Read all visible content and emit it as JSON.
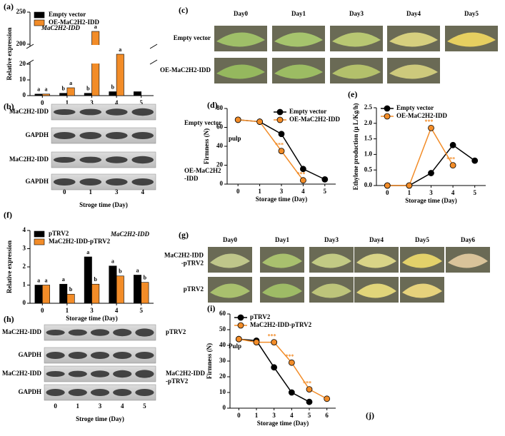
{
  "chart_data": [
    {
      "type": "bar",
      "panel": "(a)",
      "annotation": "MaC2H2-IDD",
      "ylabel": "Relative expression",
      "xlabel": "Storage time (Day)",
      "categories": [
        "0",
        "1",
        "3",
        "4",
        "5"
      ],
      "ylim": [
        0,
        250
      ],
      "axis_break": [
        20,
        200
      ],
      "yticks": [
        0,
        10,
        20,
        200,
        250
      ],
      "legend": "upper left",
      "series": [
        {
          "name": "Empty vector",
          "color": "#000000",
          "values": [
            1,
            1.5,
            1.5,
            2.5,
            2.5
          ],
          "letters": [
            "a",
            "b",
            "b",
            "b",
            null
          ]
        },
        {
          "name": "OE-MaC2H2-IDD",
          "color": "#f28c28",
          "values": [
            1,
            5,
            220,
            170,
            null
          ],
          "letters": [
            "a",
            "a",
            "a",
            "a",
            null
          ]
        }
      ]
    },
    {
      "type": "line",
      "panel": "(d)",
      "annotation": "pulp",
      "ylabel": "Firmness (N)",
      "xlabel": "Storage time (Day)",
      "categories": [
        "0",
        "1",
        "3",
        "4",
        "5"
      ],
      "ylim": [
        0,
        80
      ],
      "yticks": [
        0,
        20,
        40,
        60,
        80
      ],
      "legend": "upper right",
      "series": [
        {
          "name": "Empty vector",
          "color": "#000000",
          "values": [
            68,
            66,
            53,
            16,
            5
          ]
        },
        {
          "name": "OE-MaC2H2-IDD",
          "color": "#f28c28",
          "values": [
            68,
            66,
            35,
            4,
            null
          ],
          "stars": [
            null,
            null,
            "***",
            "***",
            null
          ]
        }
      ]
    },
    {
      "type": "line",
      "panel": "(e)",
      "ylabel": "Ethylene production (μ L/Kg/h)",
      "xlabel": "Storage time (Day)",
      "categories": [
        "0",
        "1",
        "3",
        "4",
        "5"
      ],
      "ylim": [
        0,
        2.5
      ],
      "yticks": [
        {
          "value": 0,
          "label": "0.0"
        },
        0.5,
        {
          "value": 1,
          "label": "1.0"
        },
        1.5,
        {
          "value": 2,
          "label": "2.0"
        },
        2.5
      ],
      "legend": "upper left",
      "series": [
        {
          "name": "Empty vector",
          "color": "#000000",
          "values": [
            0,
            0,
            0.4,
            1.3,
            0.8
          ]
        },
        {
          "name": "OE-MaC2H2-IDD",
          "color": "#f28c28",
          "values": [
            0,
            0,
            1.85,
            0.65,
            null
          ],
          "stars": [
            null,
            null,
            "***",
            "***",
            null
          ]
        }
      ]
    },
    {
      "type": "bar",
      "panel": "(f)",
      "annotation": "MaC2H2-IDD",
      "ylabel": "Relative expression",
      "xlabel": "Storage time (Day)",
      "categories": [
        "0",
        "1",
        "3",
        "4",
        "5"
      ],
      "ylim": [
        0,
        4
      ],
      "yticks": [
        0,
        1,
        2,
        3,
        4
      ],
      "legend": "upper left",
      "series": [
        {
          "name": "pTRV2",
          "color": "#000000",
          "values": [
            1,
            1.05,
            2.55,
            2.05,
            1.55
          ],
          "letters": [
            "a",
            "a",
            "a",
            "a",
            "a"
          ]
        },
        {
          "name": "MaC2H2-IDD-pTRV2",
          "color": "#f28c28",
          "values": [
            1,
            0.5,
            1.05,
            1.5,
            1.15
          ],
          "letters": [
            "a",
            "b",
            "b",
            "b",
            "b"
          ]
        }
      ]
    },
    {
      "type": "line",
      "panel": "(i)",
      "annotation": "Pulp",
      "ylabel": "Firmness (N)",
      "xlabel": "Storage time (Day)",
      "categories": [
        "0",
        "1",
        "3",
        "4",
        "5",
        "6"
      ],
      "ylim": [
        0,
        60
      ],
      "yticks": [
        0,
        10,
        20,
        30,
        40,
        50,
        60
      ],
      "legend": "upper left",
      "series": [
        {
          "name": "pTRV2",
          "color": "#000000",
          "values": [
            44,
            43,
            26,
            10,
            4,
            null
          ]
        },
        {
          "name": "MaC2H2-IDD-pTRV2",
          "color": "#f28c28",
          "values": [
            44,
            42,
            42,
            29,
            12,
            6
          ],
          "stars": [
            null,
            null,
            "***",
            "***",
            "***",
            null
          ]
        }
      ]
    }
  ],
  "blots": [
    {
      "panel": "(b)",
      "lanes": [
        "0",
        "1",
        "3",
        "4"
      ],
      "xlabel": "Stroge time (Day)",
      "rows": [
        "MaC2H2-IDD",
        "GAPDH",
        "MaC2H2-IDD",
        "GAPDH"
      ],
      "groups": [
        [
          "Empty vector"
        ],
        [
          "OE-MaC2H2",
          "-IDD"
        ]
      ]
    },
    {
      "panel": "(h)",
      "lanes": [
        "0",
        "1",
        "3",
        "4",
        "5"
      ],
      "xlabel": "Stroge time (Day)",
      "rows": [
        "MaC2H2-IDD",
        "GAPDH",
        "MaC2H2-IDD",
        "GAPDH"
      ],
      "groups": [
        [
          "pTRV2"
        ],
        [
          "MaC2H2-IDD",
          "-pTRV2"
        ]
      ]
    }
  ],
  "photos": [
    {
      "panel": "(c)",
      "days": [
        "Day0",
        "Day1",
        "Day3",
        "Day4",
        "Day5"
      ],
      "rows": [
        [
          "Empty vector"
        ],
        [
          "OE-MaC2H2-IDD"
        ]
      ]
    },
    {
      "panel": "(g)",
      "days": [
        "Day0",
        "Day1",
        "Day3",
        "Day4",
        "Day5",
        "Day6"
      ],
      "rows": [
        [
          "MaC2H2-IDD",
          "-pTRV2"
        ],
        [
          "pTRV2"
        ]
      ]
    }
  ],
  "panel_j": "(j)"
}
